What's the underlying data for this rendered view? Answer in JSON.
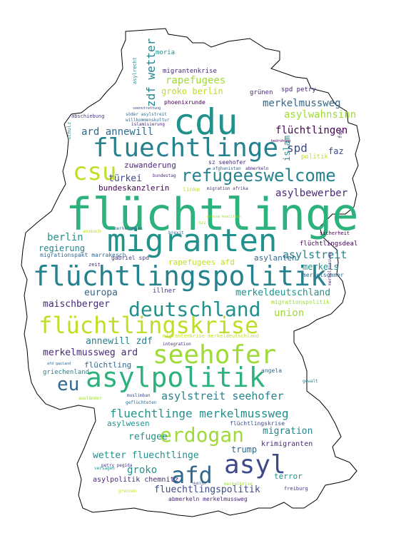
{
  "words": {
    "fluechtlinge_big": "flüchtlinge",
    "migranten": "migranten",
    "fluechtlingspolitik": "flüchtlingspolitik",
    "cdu": "cdu",
    "fluechtlinge": "fluechtlinge",
    "csu": "csu",
    "refugeeswelcome": "refugeeswelcome",
    "deutschland": "deutschland",
    "fluechtlingskrise": "flüchtlingskrise",
    "seehofer": "seehofer",
    "asylpolitik": "asylpolitik",
    "asyl": "asyl",
    "afd": "afd",
    "erdogan": "erdogan",
    "eu": "eu",
    "fluechtlinge_merkelmussweg": "fluechtlinge merkelmussweg",
    "asylstreit_seehofer": "asylstreit seehofer",
    "zdf_wetter": "zdf wetter",
    "rapefugees": "rapefugees",
    "groko_berlin": "groko berlin",
    "merkelmussweg": "merkelmussweg",
    "asylwahnsinn": "asylwahnsinn",
    "fluechtlingen": "flüchtlingen",
    "ard_annewill": "ard annewill",
    "zuwanderung": "zuwanderung",
    "tuerkei": "türkei",
    "bundeskanzlerin": "bundeskanzlerin",
    "asylbewerber": "asylbewerber",
    "spd": "spd",
    "islam": "islam",
    "faz": "faz",
    "berlin": "berlin",
    "regierung": "regierung",
    "asylstreit": "asylstreit",
    "merkels": "merkels",
    "europa": "europa",
    "maischberger": "maischberger",
    "merkeldeutschland": "merkeldeutschland",
    "union": "union",
    "annewill_zdf": "annewill zdf",
    "merkelmussweg_ard": "merkelmussweg ard",
    "fluechtling": "flüchtling",
    "griechenland": "griechenland",
    "aslyanten": "asylanten",
    "rapefugees_afd": "rapefugees afd",
    "migrationspakt_marrakesch": "migrationspakt marrakesch",
    "gabriel_spd": "gabriel spd",
    "illner": "illner",
    "asylwesen": "asylwesen",
    "refugee": "refugee",
    "migration": "migration",
    "wetter_fluechtlinge": "wetter fluechtlinge",
    "trump": "trump",
    "groko": "groko",
    "asylpolitik_chemnitz": "asylpolitik chemnitz",
    "terror": "terror",
    "fluechtlingspolitik_small": "fluechtlingspolitik",
    "abmerkeln_merkelmussweg": "abmerkeln merkelmussweg",
    "migrantenkrise": "migrantenkrise",
    "phoenixrunde": "phoenixrunde",
    "gruenen": "grünen",
    "spd_petry": "spd petry",
    "moria": "moria",
    "politik": "politik",
    "fluechtlingsdeal": "flüchtlingsdeal",
    "merkelsommer": "merkelsommer",
    "sz_seehofer": "sz seehofer",
    "afghanistan": "afghanistan",
    "abmerkeln": "abmerkeln",
    "krimigranten": "krimigranten",
    "migrationspolitik": "migrationspolitik",
    "integration": "integration",
    "angela": "angela",
    "auslaender": "ausländer",
    "fluechtlingskrise_small": "flüchtlingskrise",
    "muslimban": "muslimban",
    "gefluechteten": "geflüchteten",
    "petry_pegida": "petry pegida",
    "versagen": "versagen",
    "freiburg": "freiburg",
    "grenzen": "grenzen",
    "zeit": "zeit",
    "linke": "linke",
    "bundestag": "bundestag",
    "migration_afrika": "migration afrika",
    "sicherheit": "sicherheit",
    "ansbach": "ansbach",
    "merkelunion": "merkelunion",
    "abschiebung": "abschiebung",
    "soeder_asylstreit": "söder asylstreit",
    "willkommenskultur": "willkommenskultur",
    "islamisierung": "islamisierung",
    "schulz": "schulz",
    "gewalt": "gewalt",
    "afd_gauland": "afd gauland",
    "seenotrettung": "seenotrettung",
    "merkelmussweg_v": "merkelmussweg",
    "asylrecht": "asylrecht",
    "brexit": "brexit",
    "fdp": "fdp",
    "nzz": "nzz",
    "dublin": "dublin",
    "merkelkrise": "merkelkrise",
    "migrantenkrise_merkeldeutschland": "migrantenkrise merkeldeutschland",
    "grosse_koalition": "grosse koalition",
    "bedrohung": "bedrohung"
  },
  "colors": {
    "outline": "#000000",
    "background": "#ffffff",
    "teal": "#21918c",
    "green": "#2db27d",
    "dark_blue": "#31688e",
    "indigo": "#3e4a89",
    "navy": "#443983",
    "purple": "#482878",
    "deep_purple": "#440154",
    "lime": "#a0da39",
    "yellow_green": "#bddf26",
    "light_green": "#5ec962",
    "sea": "#26828e"
  }
}
